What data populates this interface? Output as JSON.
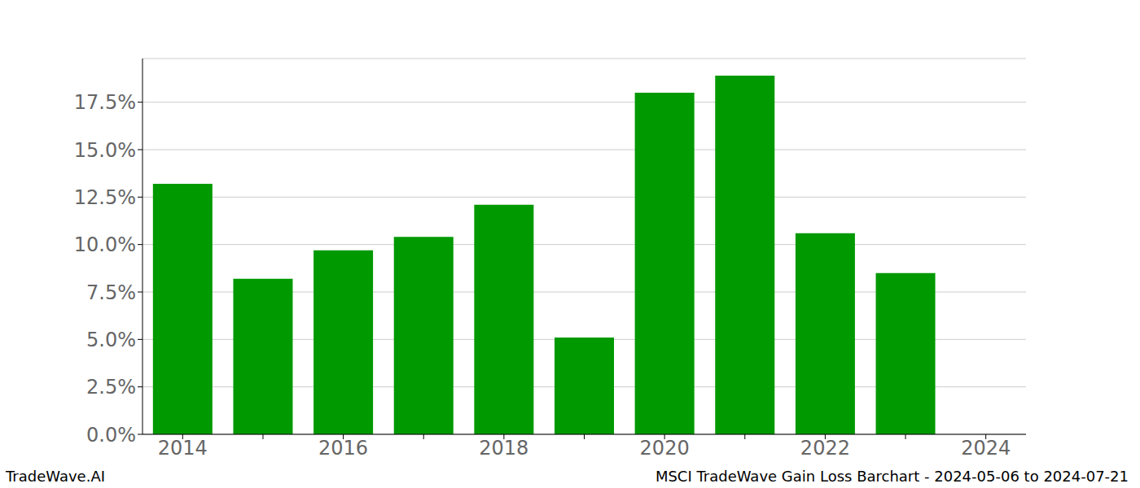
{
  "chart_data": {
    "type": "bar",
    "title": "MSCI TradeWave Gain Loss Barchart - 2024-05-06 to 2024-07-21",
    "source": "TradeWave.AI",
    "categories": [
      "2014",
      null,
      "2016",
      null,
      "2018",
      null,
      "2020",
      null,
      "2022",
      null,
      "2024"
    ],
    "values": [
      13.2,
      8.2,
      9.7,
      10.4,
      12.1,
      5.1,
      18.0,
      18.9,
      10.6,
      8.5,
      null
    ],
    "color": "#009900",
    "ylim": [
      0,
      19.8
    ],
    "yticks": [
      {
        "value": 0,
        "label": "0.0%"
      },
      {
        "value": 2.5,
        "label": "2.5%"
      },
      {
        "value": 5,
        "label": "5.0%"
      },
      {
        "value": 7.5,
        "label": "7.5%"
      },
      {
        "value": 10,
        "label": "10.0%"
      },
      {
        "value": 12.5,
        "label": "12.5%"
      },
      {
        "value": 15,
        "label": "15.0%"
      },
      {
        "value": 17.5,
        "label": "17.5%"
      }
    ],
    "grid": true
  }
}
